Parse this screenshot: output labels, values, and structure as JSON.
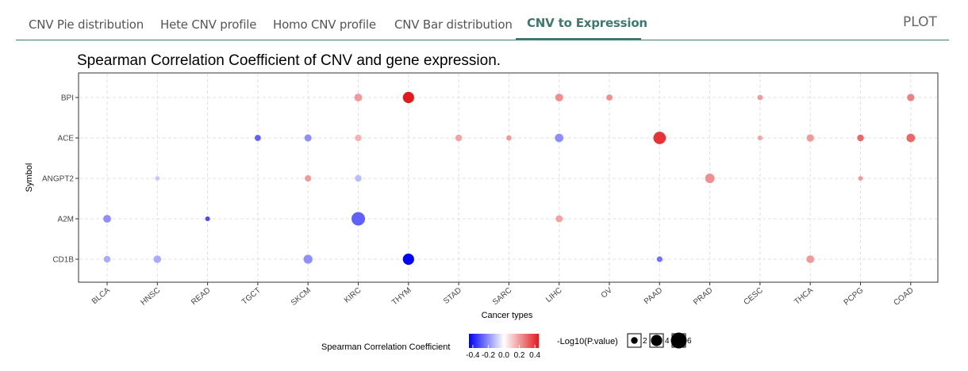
{
  "tabs": [
    {
      "label": "CNV Pie distribution",
      "active": false
    },
    {
      "label": "Hete CNV profile",
      "active": false
    },
    {
      "label": "Homo CNV profile",
      "active": false
    },
    {
      "label": "CNV Bar distribution",
      "active": false
    },
    {
      "label": "CNV to Expression",
      "active": true
    }
  ],
  "plot_link": "PLOT",
  "chart_data": {
    "type": "scatter",
    "title": "Spearman Correlation Coefficient of CNV and gene expression.",
    "xlabel": "Cancer types",
    "ylabel": "Symbol",
    "categories_x": [
      "BLCA",
      "HNSC",
      "READ",
      "TGCT",
      "SKCM",
      "KIRC",
      "THYM",
      "STAD",
      "SARC",
      "LIHC",
      "OV",
      "PAAD",
      "PRAD",
      "CESC",
      "THCA",
      "PCPG",
      "COAD"
    ],
    "categories_y": [
      "BPI",
      "ACE",
      "ANGPT2",
      "A2M",
      "CD1B"
    ],
    "grid": true,
    "color_scale": {
      "low": "#0000ff",
      "mid": "#ffffff",
      "high": "#e31a1c",
      "limits": [
        -0.45,
        0.45
      ],
      "ticks": [
        "-0.4",
        "-0.2",
        "0.0",
        "0.2",
        "0.4"
      ]
    },
    "size_scale_ticks": [
      "2",
      "4",
      "6"
    ],
    "legend_color_title": "Spearman Correlation Coefficient",
    "legend_size_title": "-Log10(P.value)",
    "legend_position": "bottom",
    "points": [
      {
        "x": "KIRC",
        "y": "BPI",
        "value": 0.2,
        "size": 2.5
      },
      {
        "x": "THYM",
        "y": "BPI",
        "value": 0.45,
        "size": 4
      },
      {
        "x": "LIHC",
        "y": "BPI",
        "value": 0.22,
        "size": 2.5
      },
      {
        "x": "OV",
        "y": "BPI",
        "value": 0.22,
        "size": 1.8
      },
      {
        "x": "CESC",
        "y": "BPI",
        "value": 0.2,
        "size": 1.4
      },
      {
        "x": "COAD",
        "y": "BPI",
        "value": 0.25,
        "size": 2.3
      },
      {
        "x": "TGCT",
        "y": "ACE",
        "value": -0.28,
        "size": 1.8
      },
      {
        "x": "SKCM",
        "y": "ACE",
        "value": -0.2,
        "size": 2.2
      },
      {
        "x": "KIRC",
        "y": "ACE",
        "value": 0.15,
        "size": 2.0
      },
      {
        "x": "STAD",
        "y": "ACE",
        "value": 0.18,
        "size": 2.0
      },
      {
        "x": "SARC",
        "y": "ACE",
        "value": 0.2,
        "size": 1.4
      },
      {
        "x": "LIHC",
        "y": "ACE",
        "value": -0.2,
        "size": 2.8
      },
      {
        "x": "PAAD",
        "y": "ACE",
        "value": 0.4,
        "size": 4.5
      },
      {
        "x": "CESC",
        "y": "ACE",
        "value": 0.18,
        "size": 1.2
      },
      {
        "x": "THCA",
        "y": "ACE",
        "value": 0.2,
        "size": 2.3
      },
      {
        "x": "PCPG",
        "y": "ACE",
        "value": 0.3,
        "size": 2.0
      },
      {
        "x": "COAD",
        "y": "ACE",
        "value": 0.3,
        "size": 2.8
      },
      {
        "x": "HNSC",
        "y": "ANGPT2",
        "value": -0.1,
        "size": 1.0
      },
      {
        "x": "SKCM",
        "y": "ANGPT2",
        "value": 0.2,
        "size": 1.9
      },
      {
        "x": "KIRC",
        "y": "ANGPT2",
        "value": -0.12,
        "size": 2.0
      },
      {
        "x": "PRAD",
        "y": "ANGPT2",
        "value": 0.22,
        "size": 3.2
      },
      {
        "x": "PCPG",
        "y": "ANGPT2",
        "value": 0.2,
        "size": 1.1
      },
      {
        "x": "BLCA",
        "y": "A2M",
        "value": -0.2,
        "size": 2.5
      },
      {
        "x": "READ",
        "y": "A2M",
        "value": -0.32,
        "size": 1.2
      },
      {
        "x": "KIRC",
        "y": "A2M",
        "value": -0.28,
        "size": 5.0
      },
      {
        "x": "LIHC",
        "y": "A2M",
        "value": 0.18,
        "size": 2.2
      },
      {
        "x": "BLCA",
        "y": "CD1B",
        "value": -0.15,
        "size": 2.0
      },
      {
        "x": "HNSC",
        "y": "CD1B",
        "value": -0.15,
        "size": 2.4
      },
      {
        "x": "SKCM",
        "y": "CD1B",
        "value": -0.2,
        "size": 3.0
      },
      {
        "x": "THYM",
        "y": "CD1B",
        "value": -0.45,
        "size": 4.0
      },
      {
        "x": "PAAD",
        "y": "CD1B",
        "value": -0.25,
        "size": 1.6
      },
      {
        "x": "THCA",
        "y": "CD1B",
        "value": 0.2,
        "size": 2.5
      }
    ]
  }
}
